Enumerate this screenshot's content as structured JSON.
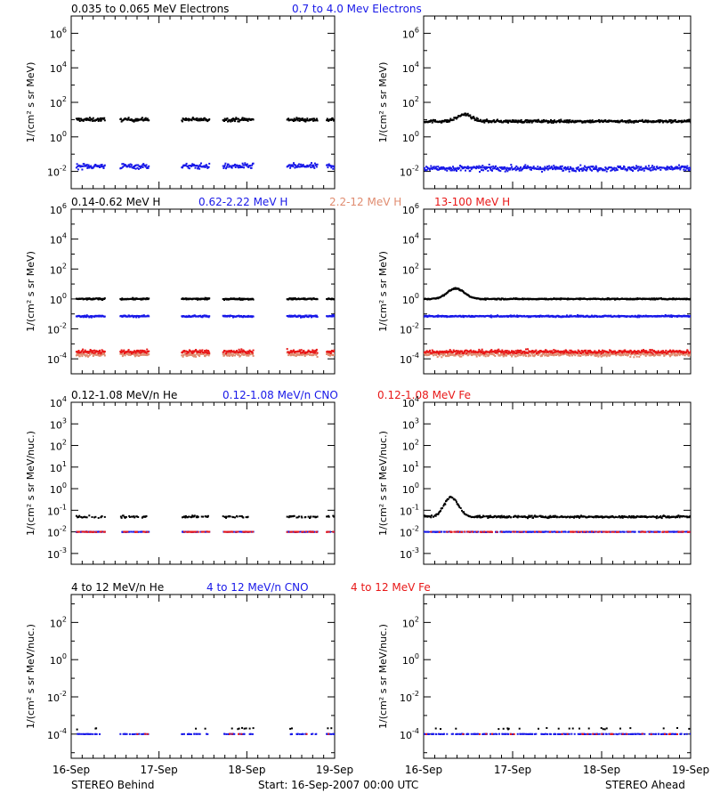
{
  "colors": {
    "black": "#000000",
    "blue": "#1818e8",
    "salmon": "#e08c70",
    "red": "#e81818"
  },
  "panel_titles": [
    [
      {
        "text": "0.035 to 0.065 MeV Electrons",
        "color": "black"
      },
      {
        "text": "0.7 to 4.0 Mev Electrons",
        "color": "blue"
      }
    ],
    [
      {
        "text": "0.14-0.62 MeV H",
        "color": "black"
      },
      {
        "text": "0.62-2.22 MeV H",
        "color": "blue"
      },
      {
        "text": "2.2-12 MeV H",
        "color": "salmon"
      },
      {
        "text": "13-100 MeV H",
        "color": "red"
      }
    ],
    [
      {
        "text": "0.12-1.08 MeV/n He",
        "color": "black"
      },
      {
        "text": "0.12-1.08 MeV/n CNO",
        "color": "blue"
      },
      {
        "text": "0.12-1.08 MeV Fe",
        "color": "red"
      }
    ],
    [
      {
        "text": "4 to 12 MeV/n He",
        "color": "black"
      },
      {
        "text": "4 to 12 MeV/n CNO",
        "color": "blue"
      },
      {
        "text": "4 to 12 MeV Fe",
        "color": "red"
      }
    ]
  ],
  "footer": {
    "left": "STEREO Behind",
    "center": "Start: 16-Sep-2007 00:00 UTC",
    "right": "STEREO Ahead"
  },
  "chart_data": [
    {
      "type": "scatter",
      "row": 0,
      "spacecraft": "STEREO Behind",
      "ylabel": "1/(cm² s sr MeV)",
      "yscale": "log",
      "ylim_exp": [
        -3,
        7
      ],
      "ytick_exponents": [
        -2,
        0,
        2,
        4,
        6
      ],
      "x_ticks": [
        "16-Sep",
        "17-Sep",
        "18-Sep",
        "19-Sep"
      ],
      "xlim_days": [
        0,
        3
      ],
      "data_segments_days": [
        [
          0.05,
          0.38
        ],
        [
          0.55,
          0.88
        ],
        [
          1.25,
          1.57
        ],
        [
          1.72,
          2.07
        ],
        [
          2.45,
          2.8
        ],
        [
          2.9,
          3.25
        ]
      ],
      "series": [
        {
          "name": "0.035 to 0.065 MeV Electrons",
          "color": "black",
          "level": 10,
          "scatter_dex": 0.1
        },
        {
          "name": "0.7 to 4.0 Mev Electrons",
          "color": "blue",
          "level": 0.02,
          "scatter_dex": 0.15
        }
      ]
    },
    {
      "type": "scatter",
      "row": 0,
      "spacecraft": "STEREO Ahead",
      "ylabel": "1/(cm² s sr MeV)",
      "yscale": "log",
      "ylim_exp": [
        -3,
        7
      ],
      "ytick_exponents": [
        -2,
        0,
        2,
        4,
        6
      ],
      "x_ticks": [
        "16-Sep",
        "17-Sep",
        "18-Sep",
        "19-Sep"
      ],
      "xlim_days": [
        0,
        3
      ],
      "data_segments_days": [
        [
          0,
          3
        ]
      ],
      "series": [
        {
          "name": "0.035 to 0.065 MeV Electrons",
          "color": "black",
          "level": 8,
          "scatter_dex": 0.08,
          "peak": {
            "day": 0.45,
            "value": 20,
            "width": 0.1
          }
        },
        {
          "name": "0.7 to 4.0 Mev Electrons",
          "color": "blue",
          "level": 0.015,
          "scatter_dex": 0.15
        }
      ]
    },
    {
      "type": "scatter",
      "row": 1,
      "spacecraft": "STEREO Behind",
      "ylabel": "1/(cm² s sr MeV)",
      "yscale": "log",
      "ylim_exp": [
        -5,
        6
      ],
      "ytick_exponents": [
        -4,
        -2,
        0,
        2,
        4,
        6
      ],
      "x_ticks": [
        "16-Sep",
        "17-Sep",
        "18-Sep",
        "19-Sep"
      ],
      "xlim_days": [
        0,
        3
      ],
      "data_segments_days": [
        [
          0.05,
          0.38
        ],
        [
          0.55,
          0.88
        ],
        [
          1.25,
          1.57
        ],
        [
          1.72,
          2.07
        ],
        [
          2.45,
          2.8
        ],
        [
          2.9,
          3.25
        ]
      ],
      "series": [
        {
          "name": "0.14-0.62 MeV H",
          "color": "black",
          "level": 1,
          "scatter_dex": 0.05
        },
        {
          "name": "0.62-2.22 MeV H",
          "color": "blue",
          "level": 0.07,
          "scatter_dex": 0.06
        },
        {
          "name": "2.2-12 MeV H",
          "color": "salmon",
          "level": 0.0002,
          "scatter_dex": 0.15
        },
        {
          "name": "13-100 MeV H",
          "color": "red",
          "level": 0.0003,
          "scatter_dex": 0.12
        }
      ]
    },
    {
      "type": "scatter",
      "row": 1,
      "spacecraft": "STEREO Ahead",
      "ylabel": "1/(cm² s sr MeV)",
      "yscale": "log",
      "ylim_exp": [
        -5,
        6
      ],
      "ytick_exponents": [
        -4,
        -2,
        0,
        2,
        4,
        6
      ],
      "x_ticks": [
        "16-Sep",
        "17-Sep",
        "18-Sep",
        "19-Sep"
      ],
      "xlim_days": [
        0,
        3
      ],
      "data_segments_days": [
        [
          0,
          3
        ]
      ],
      "series": [
        {
          "name": "0.14-0.62 MeV H",
          "color": "black",
          "level": 1,
          "scatter_dex": 0.04,
          "peak": {
            "day": 0.35,
            "value": 5,
            "width": 0.12
          }
        },
        {
          "name": "0.62-2.22 MeV H",
          "color": "blue",
          "level": 0.07,
          "scatter_dex": 0.05
        },
        {
          "name": "2.2-12 MeV H",
          "color": "salmon",
          "level": 0.0002,
          "scatter_dex": 0.15
        },
        {
          "name": "13-100 MeV H",
          "color": "red",
          "level": 0.0003,
          "scatter_dex": 0.12
        }
      ]
    },
    {
      "type": "scatter",
      "row": 2,
      "spacecraft": "STEREO Behind",
      "ylabel": "1/(cm² s sr MeV/nuc.)",
      "yscale": "log",
      "ylim_exp": [
        -3.5,
        4
      ],
      "ytick_exponents": [
        -3,
        -2,
        -1,
        0,
        1,
        2,
        3,
        4
      ],
      "x_ticks": [
        "16-Sep",
        "17-Sep",
        "18-Sep",
        "19-Sep"
      ],
      "xlim_days": [
        0,
        3
      ],
      "data_segments_days": [
        [
          0.05,
          0.38
        ],
        [
          0.55,
          0.88
        ],
        [
          1.25,
          1.57
        ],
        [
          1.72,
          2.07
        ],
        [
          2.45,
          2.8
        ],
        [
          2.9,
          3.25
        ]
      ],
      "series": [
        {
          "name": "0.12-1.08 MeV/n He",
          "color": "black",
          "level": 0.05,
          "scatter_dex": 0.05,
          "sparse": 0.5
        },
        {
          "name": "0.12-1.08 MeV/n CNO",
          "color": "blue",
          "level": 0.01,
          "scatter_dex": 0.01,
          "sparse": 0.6
        },
        {
          "name": "0.12-1.08 MeV Fe",
          "color": "red",
          "level": 0.01,
          "scatter_dex": 0.01,
          "sparse": 0.3
        }
      ]
    },
    {
      "type": "scatter",
      "row": 2,
      "spacecraft": "STEREO Ahead",
      "ylabel": "1/(cm² s sr MeV/nuc.)",
      "yscale": "log",
      "ylim_exp": [
        -3.5,
        4
      ],
      "ytick_exponents": [
        -3,
        -2,
        -1,
        0,
        1,
        2,
        3,
        4
      ],
      "x_ticks": [
        "16-Sep",
        "17-Sep",
        "18-Sep",
        "19-Sep"
      ],
      "xlim_days": [
        0,
        3
      ],
      "data_segments_days": [
        [
          0,
          3
        ]
      ],
      "series": [
        {
          "name": "0.12-1.08 MeV/n He",
          "color": "black",
          "level": 0.05,
          "scatter_dex": 0.05,
          "sparse": 0.8,
          "peak": {
            "day": 0.3,
            "value": 0.4,
            "width": 0.1
          }
        },
        {
          "name": "0.12-1.08 MeV/n CNO",
          "color": "blue",
          "level": 0.01,
          "scatter_dex": 0.01,
          "sparse": 0.6
        },
        {
          "name": "0.12-1.08 MeV Fe",
          "color": "red",
          "level": 0.01,
          "scatter_dex": 0.01,
          "sparse": 0.2
        }
      ]
    },
    {
      "type": "scatter",
      "row": 3,
      "spacecraft": "STEREO Behind",
      "ylabel": "1/(cm² s sr MeV/nuc.)",
      "yscale": "log",
      "ylim_exp": [
        -5.3,
        3.5
      ],
      "ytick_exponents": [
        -4,
        -2,
        0,
        2
      ],
      "x_ticks": [
        "16-Sep",
        "17-Sep",
        "18-Sep",
        "19-Sep"
      ],
      "xlim_days": [
        0,
        3
      ],
      "data_segments_days": [
        [
          0.05,
          0.38
        ],
        [
          0.55,
          0.88
        ],
        [
          1.25,
          1.57
        ],
        [
          1.72,
          2.07
        ],
        [
          2.45,
          2.8
        ],
        [
          2.9,
          3.25
        ]
      ],
      "series": [
        {
          "name": "4 to 12 MeV/n He",
          "color": "black",
          "level": 0.0002,
          "scatter_dex": 0.05,
          "sparse": 0.05
        },
        {
          "name": "4 to 12 MeV/n CNO",
          "color": "blue",
          "level": 0.0001,
          "scatter_dex": 0.01,
          "sparse": 0.4
        },
        {
          "name": "4 to 12 MeV Fe",
          "color": "red",
          "level": 0.0001,
          "scatter_dex": 0.01,
          "sparse": 0.05
        }
      ]
    },
    {
      "type": "scatter",
      "row": 3,
      "spacecraft": "STEREO Ahead",
      "ylabel": "1/(cm² s sr MeV/nuc.)",
      "yscale": "log",
      "ylim_exp": [
        -5.3,
        3.5
      ],
      "ytick_exponents": [
        -4,
        -2,
        0,
        2
      ],
      "x_ticks": [
        "16-Sep",
        "17-Sep",
        "18-Sep",
        "19-Sep"
      ],
      "xlim_days": [
        0,
        3
      ],
      "data_segments_days": [
        [
          0,
          3
        ]
      ],
      "series": [
        {
          "name": "4 to 12 MeV/n He",
          "color": "black",
          "level": 0.0002,
          "scatter_dex": 0.05,
          "sparse": 0.05
        },
        {
          "name": "4 to 12 MeV/n CNO",
          "color": "blue",
          "level": 0.0001,
          "scatter_dex": 0.01,
          "sparse": 0.4
        },
        {
          "name": "4 to 12 MeV Fe",
          "color": "red",
          "level": 0.0001,
          "scatter_dex": 0.01,
          "sparse": 0.05
        }
      ]
    }
  ]
}
